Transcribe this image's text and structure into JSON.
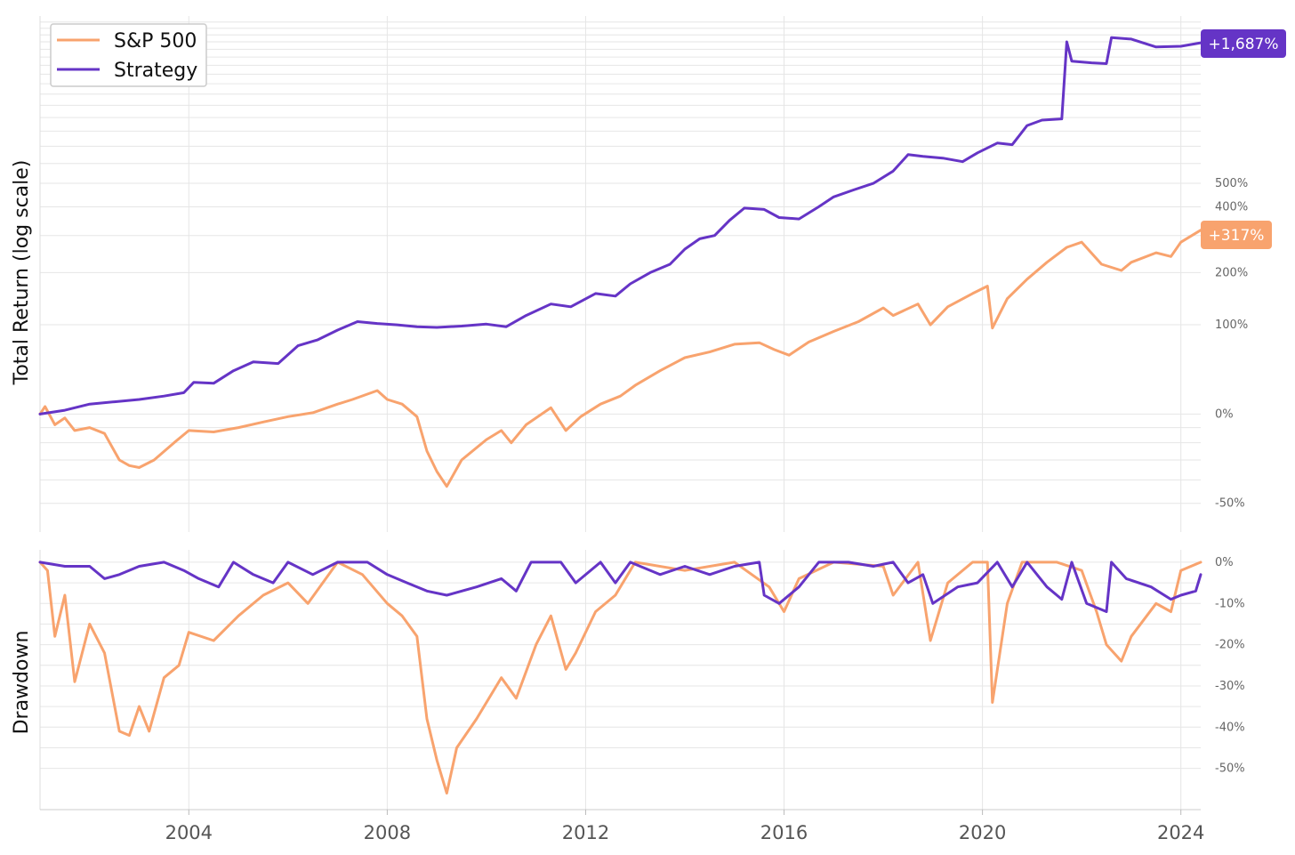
{
  "chart_data": [
    {
      "type": "line",
      "panel": "total-return",
      "ylabel": "Total Return (log scale)",
      "yscale": "log(1 + return)",
      "xlim": [
        2001.0,
        2024.4
      ],
      "ylim": [
        -60,
        2100
      ],
      "grid": true,
      "legend": "top-left",
      "x_ticks": [
        "2004",
        "2008",
        "2012",
        "2016",
        "2020",
        "2024"
      ],
      "y_ticks": [
        {
          "value": -50,
          "label": "-50%"
        },
        {
          "value": 0,
          "label": "0%"
        },
        {
          "value": 100,
          "label": "100%"
        },
        {
          "value": 200,
          "label": "200%"
        },
        {
          "value": 400,
          "label": "400%"
        },
        {
          "value": 500,
          "label": "500%"
        }
      ],
      "series": [
        {
          "name": "S&P 500",
          "color": "#F8A36E",
          "end_label": "+317%",
          "points": [
            [
              2001.0,
              0
            ],
            [
              2001.1,
              6
            ],
            [
              2001.3,
              -8
            ],
            [
              2001.5,
              -3
            ],
            [
              2001.7,
              -12
            ],
            [
              2002.0,
              -10
            ],
            [
              2002.3,
              -14
            ],
            [
              2002.6,
              -30
            ],
            [
              2002.8,
              -33
            ],
            [
              2003.0,
              -34
            ],
            [
              2003.3,
              -30
            ],
            [
              2003.7,
              -20
            ],
            [
              2004.0,
              -12
            ],
            [
              2004.5,
              -13
            ],
            [
              2005.0,
              -10
            ],
            [
              2005.5,
              -6
            ],
            [
              2006.0,
              -2
            ],
            [
              2006.5,
              1
            ],
            [
              2007.0,
              8
            ],
            [
              2007.3,
              12
            ],
            [
              2007.8,
              20
            ],
            [
              2008.0,
              12
            ],
            [
              2008.3,
              8
            ],
            [
              2008.6,
              -2
            ],
            [
              2008.8,
              -25
            ],
            [
              2009.0,
              -36
            ],
            [
              2009.2,
              -43
            ],
            [
              2009.5,
              -30
            ],
            [
              2010.0,
              -18
            ],
            [
              2010.3,
              -12
            ],
            [
              2010.5,
              -20
            ],
            [
              2010.8,
              -8
            ],
            [
              2011.3,
              5
            ],
            [
              2011.6,
              -12
            ],
            [
              2011.9,
              -2
            ],
            [
              2012.3,
              8
            ],
            [
              2012.7,
              15
            ],
            [
              2013.0,
              25
            ],
            [
              2013.5,
              40
            ],
            [
              2014.0,
              55
            ],
            [
              2014.5,
              62
            ],
            [
              2015.0,
              72
            ],
            [
              2015.5,
              74
            ],
            [
              2015.8,
              65
            ],
            [
              2016.1,
              58
            ],
            [
              2016.5,
              75
            ],
            [
              2017.0,
              90
            ],
            [
              2017.5,
              105
            ],
            [
              2018.0,
              128
            ],
            [
              2018.2,
              115
            ],
            [
              2018.7,
              135
            ],
            [
              2018.95,
              100
            ],
            [
              2019.3,
              130
            ],
            [
              2019.8,
              155
            ],
            [
              2020.1,
              170
            ],
            [
              2020.2,
              95
            ],
            [
              2020.5,
              145
            ],
            [
              2020.9,
              185
            ],
            [
              2021.3,
              225
            ],
            [
              2021.7,
              265
            ],
            [
              2022.0,
              280
            ],
            [
              2022.4,
              220
            ],
            [
              2022.8,
              205
            ],
            [
              2023.0,
              225
            ],
            [
              2023.5,
              250
            ],
            [
              2023.8,
              240
            ],
            [
              2024.0,
              280
            ],
            [
              2024.4,
              317
            ]
          ]
        },
        {
          "name": "Strategy",
          "color": "#6534C6",
          "end_label": "+1,687%",
          "points": [
            [
              2001.0,
              0
            ],
            [
              2001.5,
              3
            ],
            [
              2002.0,
              8
            ],
            [
              2002.5,
              10
            ],
            [
              2003.0,
              12
            ],
            [
              2003.5,
              15
            ],
            [
              2003.9,
              18
            ],
            [
              2004.1,
              28
            ],
            [
              2004.5,
              27
            ],
            [
              2004.9,
              40
            ],
            [
              2005.3,
              50
            ],
            [
              2005.8,
              48
            ],
            [
              2006.2,
              70
            ],
            [
              2006.6,
              78
            ],
            [
              2007.0,
              92
            ],
            [
              2007.4,
              105
            ],
            [
              2007.8,
              102
            ],
            [
              2008.2,
              100
            ],
            [
              2008.6,
              97
            ],
            [
              2009.0,
              96
            ],
            [
              2009.5,
              98
            ],
            [
              2010.0,
              101
            ],
            [
              2010.4,
              97
            ],
            [
              2010.8,
              115
            ],
            [
              2011.3,
              135
            ],
            [
              2011.7,
              130
            ],
            [
              2012.2,
              155
            ],
            [
              2012.6,
              150
            ],
            [
              2012.9,
              175
            ],
            [
              2013.3,
              200
            ],
            [
              2013.7,
              220
            ],
            [
              2014.0,
              260
            ],
            [
              2014.3,
              290
            ],
            [
              2014.6,
              300
            ],
            [
              2014.9,
              350
            ],
            [
              2015.2,
              395
            ],
            [
              2015.6,
              390
            ],
            [
              2015.9,
              360
            ],
            [
              2016.3,
              355
            ],
            [
              2016.7,
              400
            ],
            [
              2017.0,
              440
            ],
            [
              2017.4,
              470
            ],
            [
              2017.8,
              500
            ],
            [
              2018.2,
              560
            ],
            [
              2018.5,
              650
            ],
            [
              2018.8,
              640
            ],
            [
              2019.2,
              630
            ],
            [
              2019.6,
              610
            ],
            [
              2019.9,
              660
            ],
            [
              2020.3,
              720
            ],
            [
              2020.6,
              710
            ],
            [
              2020.9,
              840
            ],
            [
              2021.2,
              880
            ],
            [
              2021.6,
              890
            ],
            [
              2021.7,
              1700
            ],
            [
              2021.8,
              1450
            ],
            [
              2022.2,
              1430
            ],
            [
              2022.5,
              1420
            ],
            [
              2022.6,
              1760
            ],
            [
              2023.0,
              1740
            ],
            [
              2023.5,
              1630
            ],
            [
              2024.0,
              1640
            ],
            [
              2024.4,
              1687
            ]
          ]
        }
      ]
    },
    {
      "type": "line",
      "panel": "drawdown",
      "ylabel": "Drawdown",
      "xlim": [
        2001.0,
        2024.4
      ],
      "ylim": [
        -60,
        3
      ],
      "grid": true,
      "x_ticks": [
        "2004",
        "2008",
        "2012",
        "2016",
        "2020",
        "2024"
      ],
      "y_ticks": [
        {
          "value": 0,
          "label": "0%"
        },
        {
          "value": -10,
          "label": "-10%"
        },
        {
          "value": -20,
          "label": "-20%"
        },
        {
          "value": -30,
          "label": "-30%"
        },
        {
          "value": -40,
          "label": "-40%"
        },
        {
          "value": -50,
          "label": "-50%"
        }
      ],
      "series": [
        {
          "name": "S&P 500",
          "color": "#F8A36E",
          "points": [
            [
              2001.0,
              0
            ],
            [
              2001.15,
              -2
            ],
            [
              2001.3,
              -18
            ],
            [
              2001.5,
              -8
            ],
            [
              2001.7,
              -29
            ],
            [
              2002.0,
              -15
            ],
            [
              2002.3,
              -22
            ],
            [
              2002.6,
              -41
            ],
            [
              2002.8,
              -42
            ],
            [
              2003.0,
              -35
            ],
            [
              2003.2,
              -41
            ],
            [
              2003.5,
              -28
            ],
            [
              2003.8,
              -25
            ],
            [
              2004.0,
              -17
            ],
            [
              2004.5,
              -19
            ],
            [
              2005.0,
              -13
            ],
            [
              2005.5,
              -8
            ],
            [
              2006.0,
              -5
            ],
            [
              2006.4,
              -10
            ],
            [
              2007.0,
              0
            ],
            [
              2007.5,
              -3
            ],
            [
              2008.0,
              -10
            ],
            [
              2008.3,
              -13
            ],
            [
              2008.6,
              -18
            ],
            [
              2008.8,
              -38
            ],
            [
              2009.0,
              -48
            ],
            [
              2009.2,
              -56
            ],
            [
              2009.4,
              -45
            ],
            [
              2009.8,
              -38
            ],
            [
              2010.3,
              -28
            ],
            [
              2010.6,
              -33
            ],
            [
              2011.0,
              -20
            ],
            [
              2011.3,
              -13
            ],
            [
              2011.6,
              -26
            ],
            [
              2011.8,
              -22
            ],
            [
              2012.2,
              -12
            ],
            [
              2012.6,
              -8
            ],
            [
              2013.0,
              0
            ],
            [
              2014.0,
              -2
            ],
            [
              2015.0,
              0
            ],
            [
              2015.7,
              -6
            ],
            [
              2016.0,
              -12
            ],
            [
              2016.3,
              -4
            ],
            [
              2017.0,
              0
            ],
            [
              2018.0,
              -1
            ],
            [
              2018.2,
              -8
            ],
            [
              2018.7,
              0
            ],
            [
              2018.95,
              -19
            ],
            [
              2019.3,
              -5
            ],
            [
              2019.8,
              0
            ],
            [
              2020.1,
              0
            ],
            [
              2020.2,
              -34
            ],
            [
              2020.5,
              -10
            ],
            [
              2020.8,
              0
            ],
            [
              2021.5,
              0
            ],
            [
              2022.0,
              -2
            ],
            [
              2022.3,
              -12
            ],
            [
              2022.5,
              -20
            ],
            [
              2022.8,
              -24
            ],
            [
              2023.0,
              -18
            ],
            [
              2023.5,
              -10
            ],
            [
              2023.8,
              -12
            ],
            [
              2024.0,
              -2
            ],
            [
              2024.4,
              0
            ]
          ]
        },
        {
          "name": "Strategy",
          "color": "#6534C6",
          "points": [
            [
              2001.0,
              0
            ],
            [
              2001.5,
              -1
            ],
            [
              2002.0,
              -1
            ],
            [
              2002.3,
              -4
            ],
            [
              2002.6,
              -3
            ],
            [
              2003.0,
              -1
            ],
            [
              2003.5,
              0
            ],
            [
              2003.9,
              -2
            ],
            [
              2004.2,
              -4
            ],
            [
              2004.6,
              -6
            ],
            [
              2004.9,
              0
            ],
            [
              2005.3,
              -3
            ],
            [
              2005.7,
              -5
            ],
            [
              2006.0,
              0
            ],
            [
              2006.5,
              -3
            ],
            [
              2007.0,
              0
            ],
            [
              2007.6,
              0
            ],
            [
              2008.0,
              -3
            ],
            [
              2008.4,
              -5
            ],
            [
              2008.8,
              -7
            ],
            [
              2009.2,
              -8
            ],
            [
              2009.8,
              -6
            ],
            [
              2010.3,
              -4
            ],
            [
              2010.6,
              -7
            ],
            [
              2010.9,
              0
            ],
            [
              2011.5,
              0
            ],
            [
              2011.8,
              -5
            ],
            [
              2012.3,
              0
            ],
            [
              2012.6,
              -5
            ],
            [
              2012.9,
              0
            ],
            [
              2013.5,
              -3
            ],
            [
              2014.0,
              -1
            ],
            [
              2014.5,
              -3
            ],
            [
              2015.0,
              -1
            ],
            [
              2015.5,
              0
            ],
            [
              2015.6,
              -8
            ],
            [
              2015.9,
              -10
            ],
            [
              2016.3,
              -6
            ],
            [
              2016.7,
              0
            ],
            [
              2017.3,
              0
            ],
            [
              2017.8,
              -1
            ],
            [
              2018.2,
              0
            ],
            [
              2018.5,
              -5
            ],
            [
              2018.8,
              -3
            ],
            [
              2019.0,
              -10
            ],
            [
              2019.5,
              -6
            ],
            [
              2019.9,
              -5
            ],
            [
              2020.3,
              0
            ],
            [
              2020.6,
              -6
            ],
            [
              2020.9,
              0
            ],
            [
              2021.3,
              -6
            ],
            [
              2021.6,
              -9
            ],
            [
              2021.8,
              0
            ],
            [
              2022.1,
              -10
            ],
            [
              2022.5,
              -12
            ],
            [
              2022.6,
              0
            ],
            [
              2022.9,
              -4
            ],
            [
              2023.4,
              -6
            ],
            [
              2023.8,
              -9
            ],
            [
              2024.0,
              -8
            ],
            [
              2024.3,
              -7
            ],
            [
              2024.4,
              -3
            ]
          ]
        }
      ]
    }
  ]
}
